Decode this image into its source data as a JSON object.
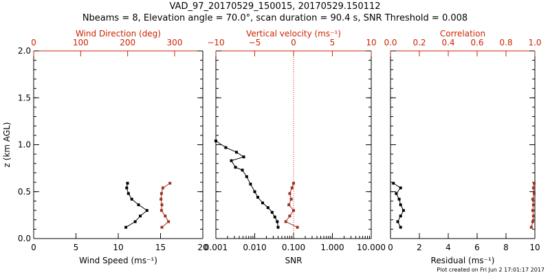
{
  "header": {
    "title_line1": "VAD_97_20170529_150015, 20170529.150112",
    "title_line2": "Nbeams = 8, Elevation angle = 70.0°, scan duration = 90.4 s, SNR Threshold = 0.008"
  },
  "footnote": "Plot created on Fri Jun  2 17:01:17 2017",
  "colors": {
    "primary": "#000000",
    "secondary": "#cc2200",
    "series2": "#a03020"
  },
  "chart_data": [
    {
      "type": "line",
      "panel": "wind",
      "ylabel": "z (km AGL)",
      "ylim": [
        0,
        2.0
      ],
      "yticks": [
        "0.0",
        "0.5",
        "1.0",
        "1.5",
        "2.0"
      ],
      "bottom_axis": {
        "label": "Wind Speed (ms⁻¹)",
        "range": [
          0,
          20
        ],
        "ticks": [
          "0",
          "5",
          "10",
          "15",
          "20"
        ]
      },
      "top_axis": {
        "label": "Wind Direction (deg)",
        "range": [
          0,
          360
        ],
        "ticks": [
          "0",
          "100",
          "200",
          "300"
        ]
      },
      "series": [
        {
          "axis": "bottom",
          "color": "#000000",
          "points": [
            [
              10.9,
              0.12
            ],
            [
              12.0,
              0.18
            ],
            [
              12.6,
              0.24
            ],
            [
              13.4,
              0.3
            ],
            [
              12.4,
              0.36
            ],
            [
              11.6,
              0.42
            ],
            [
              11.2,
              0.48
            ],
            [
              11.0,
              0.54
            ],
            [
              11.1,
              0.59
            ]
          ]
        },
        {
          "axis": "top",
          "color": "#a03020",
          "points": [
            [
              273,
              0.12
            ],
            [
              287,
              0.18
            ],
            [
              280,
              0.24
            ],
            [
              272,
              0.3
            ],
            [
              273,
              0.36
            ],
            [
              271,
              0.42
            ],
            [
              272,
              0.48
            ],
            [
              275,
              0.54
            ],
            [
              290,
              0.59
            ]
          ]
        }
      ]
    },
    {
      "type": "line",
      "panel": "snr",
      "ylim": [
        0,
        2.0
      ],
      "bottom_axis": {
        "label": "SNR",
        "scale": "log",
        "range": [
          0.001,
          10
        ],
        "ticks": [
          "0.001",
          "0.010",
          "0.100",
          "1.000",
          "10.000"
        ]
      },
      "top_axis": {
        "label": "Vertical velocity (ms⁻¹)",
        "range": [
          -10,
          10
        ],
        "ticks": [
          "−10",
          "−5",
          "0",
          "5",
          "10"
        ],
        "zero_line": true
      },
      "series": [
        {
          "axis": "bottom",
          "color": "#000000",
          "points": [
            [
              0.04,
              0.12
            ],
            [
              0.038,
              0.18
            ],
            [
              0.033,
              0.23
            ],
            [
              0.028,
              0.28
            ],
            [
              0.022,
              0.33
            ],
            [
              0.016,
              0.38
            ],
            [
              0.012,
              0.44
            ],
            [
              0.01,
              0.5
            ],
            [
              0.0078,
              0.58
            ],
            [
              0.0062,
              0.66
            ],
            [
              0.0048,
              0.73
            ],
            [
              0.0032,
              0.76
            ],
            [
              0.0025,
              0.83
            ],
            [
              0.0052,
              0.87
            ],
            [
              0.0034,
              0.92
            ],
            [
              0.0018,
              0.97
            ],
            [
              0.001,
              1.04
            ]
          ]
        },
        {
          "axis": "top",
          "color": "#a03020",
          "points": [
            [
              0.5,
              0.12
            ],
            [
              -1.0,
              0.18
            ],
            [
              -0.5,
              0.24
            ],
            [
              0.0,
              0.3
            ],
            [
              -0.6,
              0.36
            ],
            [
              -0.3,
              0.42
            ],
            [
              -0.5,
              0.48
            ],
            [
              -0.2,
              0.54
            ],
            [
              0.0,
              0.59
            ]
          ]
        }
      ]
    },
    {
      "type": "line",
      "panel": "residual",
      "ylim": [
        0,
        2.0
      ],
      "bottom_axis": {
        "label": "Residual (ms⁻¹)",
        "range": [
          0,
          10
        ],
        "ticks": [
          "0",
          "2",
          "4",
          "6",
          "8",
          "10"
        ]
      },
      "top_axis": {
        "label": "Correlation",
        "range": [
          0,
          1
        ],
        "ticks": [
          "0.0",
          "0.2",
          "0.4",
          "0.6",
          "0.8",
          "1.0"
        ]
      },
      "series": [
        {
          "axis": "bottom",
          "color": "#000000",
          "points": [
            [
              0.7,
              0.12
            ],
            [
              0.5,
              0.18
            ],
            [
              0.7,
              0.24
            ],
            [
              0.9,
              0.3
            ],
            [
              0.7,
              0.36
            ],
            [
              0.6,
              0.42
            ],
            [
              0.4,
              0.48
            ],
            [
              0.7,
              0.54
            ],
            [
              0.2,
              0.59
            ]
          ]
        },
        {
          "axis": "top",
          "color": "#a03020",
          "points": [
            [
              0.975,
              0.12
            ],
            [
              0.985,
              0.18
            ],
            [
              0.99,
              0.24
            ],
            [
              0.985,
              0.3
            ],
            [
              0.99,
              0.36
            ],
            [
              0.985,
              0.42
            ],
            [
              0.995,
              0.48
            ],
            [
              0.99,
              0.54
            ],
            [
              0.995,
              0.59
            ]
          ]
        }
      ]
    }
  ]
}
